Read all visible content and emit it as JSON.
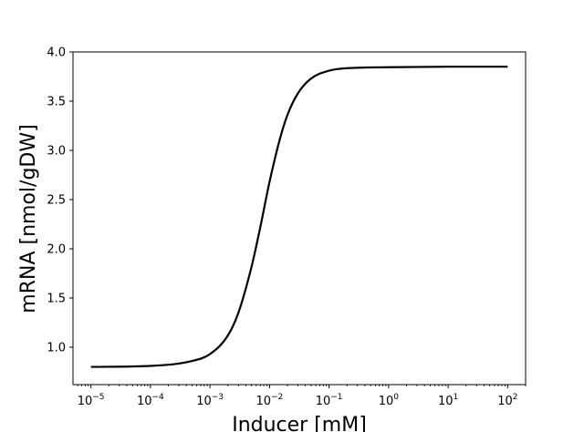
{
  "chart_data": {
    "type": "line",
    "title": "",
    "xlabel": "Inducer [mM]",
    "ylabel": "mRNA [nmol/gDW]",
    "xscale": "log",
    "xlim": [
      5e-06,
      200
    ],
    "ylim": [
      0.62,
      4.0
    ],
    "grid": false,
    "x_ticks": [
      {
        "base": "10",
        "exp": "−5",
        "value": 1e-05
      },
      {
        "base": "10",
        "exp": "−4",
        "value": 0.0001
      },
      {
        "base": "10",
        "exp": "−3",
        "value": 0.001
      },
      {
        "base": "10",
        "exp": "−2",
        "value": 0.01
      },
      {
        "base": "10",
        "exp": "−1",
        "value": 0.1
      },
      {
        "base": "10",
        "exp": "0",
        "value": 1
      },
      {
        "base": "10",
        "exp": "1",
        "value": 10
      },
      {
        "base": "10",
        "exp": "2",
        "value": 100
      }
    ],
    "y_ticks": [
      "1.0",
      "1.5",
      "2.0",
      "2.5",
      "3.0",
      "3.5",
      "4.0"
    ],
    "series": [
      {
        "color": "#000000",
        "x": [
          1e-05,
          0.0001,
          0.0005,
          0.001,
          0.002,
          0.003,
          0.005,
          0.007,
          0.01,
          0.015,
          0.02,
          0.03,
          0.05,
          0.1,
          0.2,
          1,
          10,
          100
        ],
        "y": [
          0.8,
          0.81,
          0.86,
          0.93,
          1.12,
          1.35,
          1.82,
          2.22,
          2.68,
          3.12,
          3.36,
          3.58,
          3.73,
          3.81,
          3.835,
          3.845,
          3.85,
          3.85
        ]
      }
    ]
  }
}
